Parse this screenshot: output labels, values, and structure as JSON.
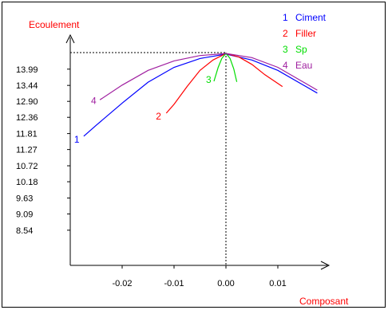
{
  "chart_data": {
    "type": "line",
    "title": "",
    "ylabel": "Ecoulement",
    "xlabel": "Composant",
    "xlim": [
      -0.03,
      0.018
    ],
    "ylim": [
      7.35,
      14.55
    ],
    "y_ticks": [
      "13.99",
      "13.44",
      "12.90",
      "12.36",
      "11.81",
      "11.27",
      "10.72",
      "10.18",
      "9.63",
      "9.09",
      "8.54"
    ],
    "x_ticks": [
      "-0.02",
      "-0.01",
      "0.00",
      "0.01"
    ],
    "reference_point": {
      "x": 0.0,
      "y": 14.55
    },
    "legend_position": "top-right",
    "grid": false,
    "series": [
      {
        "name": "Ciment",
        "id": "1",
        "color": "#0000ff",
        "x": [
          -0.0274,
          -0.025,
          -0.02,
          -0.015,
          -0.01,
          -0.005,
          0.0,
          0.005,
          0.01,
          0.0176
        ],
        "y": [
          11.72,
          12.09,
          12.84,
          13.55,
          14.05,
          14.35,
          14.5,
          14.3,
          13.95,
          13.18
        ]
      },
      {
        "name": "Filler",
        "id": "2",
        "color": "#ff0000",
        "x": [
          -0.0115,
          -0.01,
          -0.0075,
          -0.005,
          -0.0025,
          0.0,
          0.0025,
          0.005,
          0.0075,
          0.0109
        ],
        "y": [
          12.5,
          12.8,
          13.4,
          13.95,
          14.3,
          14.52,
          14.4,
          14.15,
          13.8,
          13.4
        ]
      },
      {
        "name": "Sp",
        "id": "3",
        "color": "#00dd00",
        "x": [
          -0.0023,
          -0.0015,
          -0.0008,
          0.0,
          0.0008,
          0.0015,
          0.0021
        ],
        "y": [
          13.58,
          14.05,
          14.35,
          14.53,
          14.35,
          14.0,
          13.56
        ]
      },
      {
        "name": "Eau",
        "id": "4",
        "color": "#a020a0",
        "x": [
          -0.0243,
          -0.02,
          -0.015,
          -0.01,
          -0.005,
          0.0,
          0.005,
          0.01,
          0.0176
        ],
        "y": [
          12.95,
          13.45,
          13.95,
          14.27,
          14.45,
          14.52,
          14.38,
          14.05,
          13.28
        ]
      }
    ]
  }
}
